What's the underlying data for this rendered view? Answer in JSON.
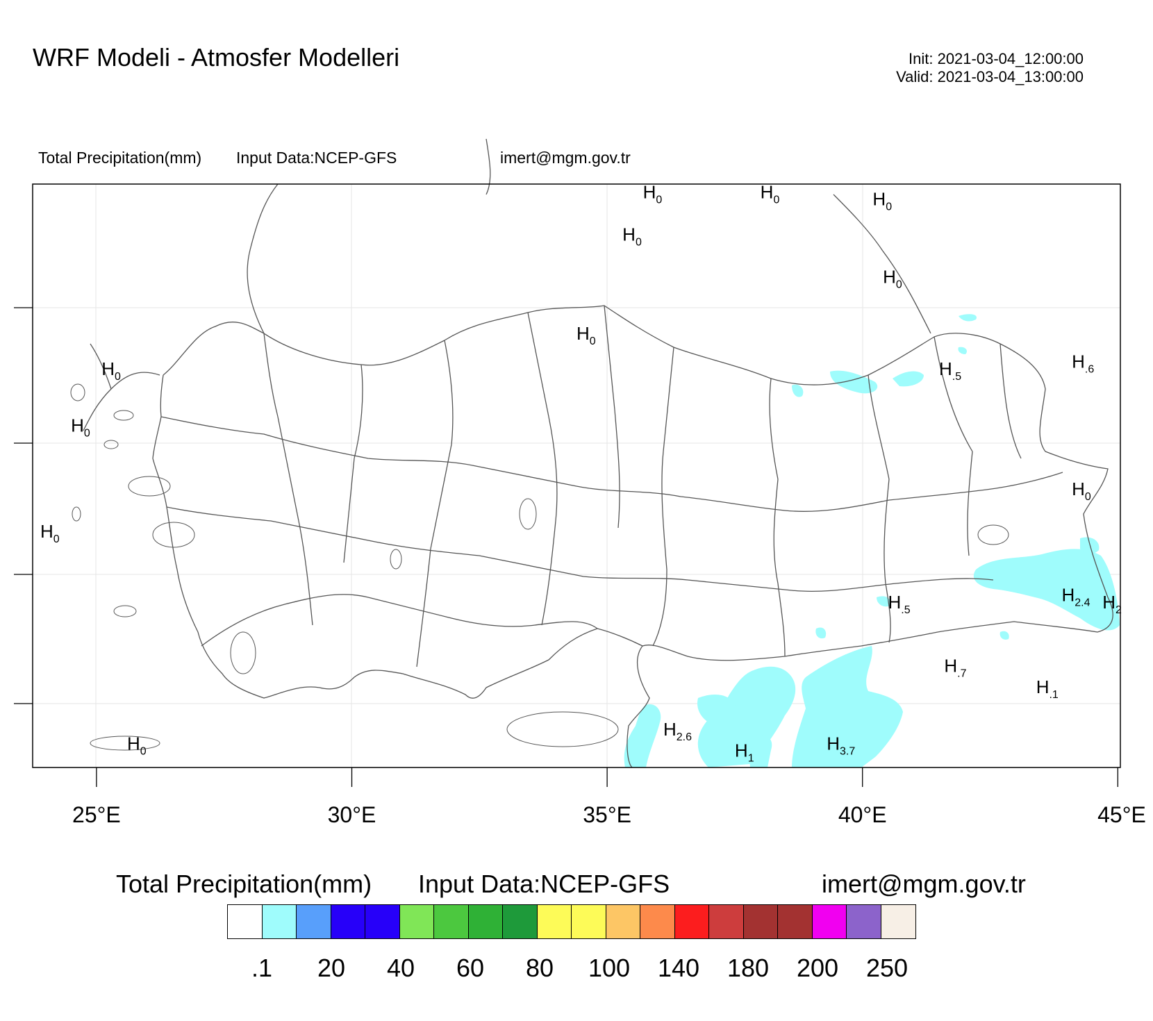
{
  "header": {
    "title": "WRF Modeli - Atmosfer Modelleri",
    "init": "Init: 2021-03-04_12:00:00",
    "valid": "Valid: 2021-03-04_13:00:00"
  },
  "subtitle": {
    "variable": "Total Precipitation(mm)",
    "input": "Input Data:NCEP-GFS",
    "email": "imert@mgm.gov.tr"
  },
  "map": {
    "lon_ticks": [
      "25°E",
      "30°E",
      "35°E",
      "40°E",
      "45°E"
    ],
    "extent_lon": [
      23.75,
      45.05
    ],
    "highs": [
      {
        "label": "H",
        "value": "0",
        "lon": 35.7,
        "lat": 43.6
      },
      {
        "label": "H",
        "value": "0",
        "lon": 38.0,
        "lat": 43.6
      },
      {
        "label": "H",
        "value": "0",
        "lon": 40.2,
        "lat": 43.5
      },
      {
        "label": "H",
        "value": "0",
        "lon": 35.3,
        "lat": 43.0
      },
      {
        "label": "H",
        "value": "0",
        "lon": 40.4,
        "lat": 42.4
      },
      {
        "label": "H",
        "value": "0",
        "lon": 34.4,
        "lat": 41.6
      },
      {
        "label": "H",
        "value": ".6",
        "lon": 44.1,
        "lat": 41.2
      },
      {
        "label": "H",
        "value": "0",
        "lon": 25.1,
        "lat": 41.1
      },
      {
        "label": "H",
        "value": ".5",
        "lon": 41.5,
        "lat": 41.1
      },
      {
        "label": "H",
        "value": "0",
        "lon": 24.5,
        "lat": 40.3
      },
      {
        "label": "H",
        "value": "0",
        "lon": 44.1,
        "lat": 39.4
      },
      {
        "label": "H",
        "value": "0",
        "lon": 23.9,
        "lat": 38.8
      },
      {
        "label": "H",
        "value": "2.4",
        "lon": 43.9,
        "lat": 37.9
      },
      {
        "label": "H",
        "value": "2",
        "lon": 44.7,
        "lat": 37.8
      },
      {
        "label": "H",
        "value": ".5",
        "lon": 40.5,
        "lat": 37.8
      },
      {
        "label": "H",
        "value": ".7",
        "lon": 41.6,
        "lat": 36.9
      },
      {
        "label": "H",
        "value": ".1",
        "lon": 43.4,
        "lat": 36.6
      },
      {
        "label": "H",
        "value": "2.6",
        "lon": 36.1,
        "lat": 36.0
      },
      {
        "label": "H",
        "value": "3.7",
        "lon": 39.3,
        "lat": 35.8
      },
      {
        "label": "H",
        "value": "1",
        "lon": 37.5,
        "lat": 35.7
      },
      {
        "label": "H",
        "value": "0",
        "lon": 25.6,
        "lat": 35.8
      }
    ]
  },
  "legend": {
    "variable": "Total Precipitation(mm)",
    "input": "Input Data:NCEP-GFS",
    "email": "imert@mgm.gov.tr",
    "colors": [
      "#ffffff",
      "#9ffcfc",
      "#589ffb",
      "#2700f9",
      "#2700f9",
      "#80e657",
      "#4cc83f",
      "#2fb136",
      "#1e9a3a",
      "#fdfb58",
      "#fdfb58",
      "#fdc665",
      "#fd8a4b",
      "#fc1d1e",
      "#cd3d3d",
      "#a33231",
      "#a33231",
      "#f100f0",
      "#8c63cb",
      "#f7efe6"
    ],
    "tick_labels": [
      ".1",
      "20",
      "40",
      "60",
      "80",
      "100",
      "140",
      "180",
      "200",
      "250"
    ]
  }
}
